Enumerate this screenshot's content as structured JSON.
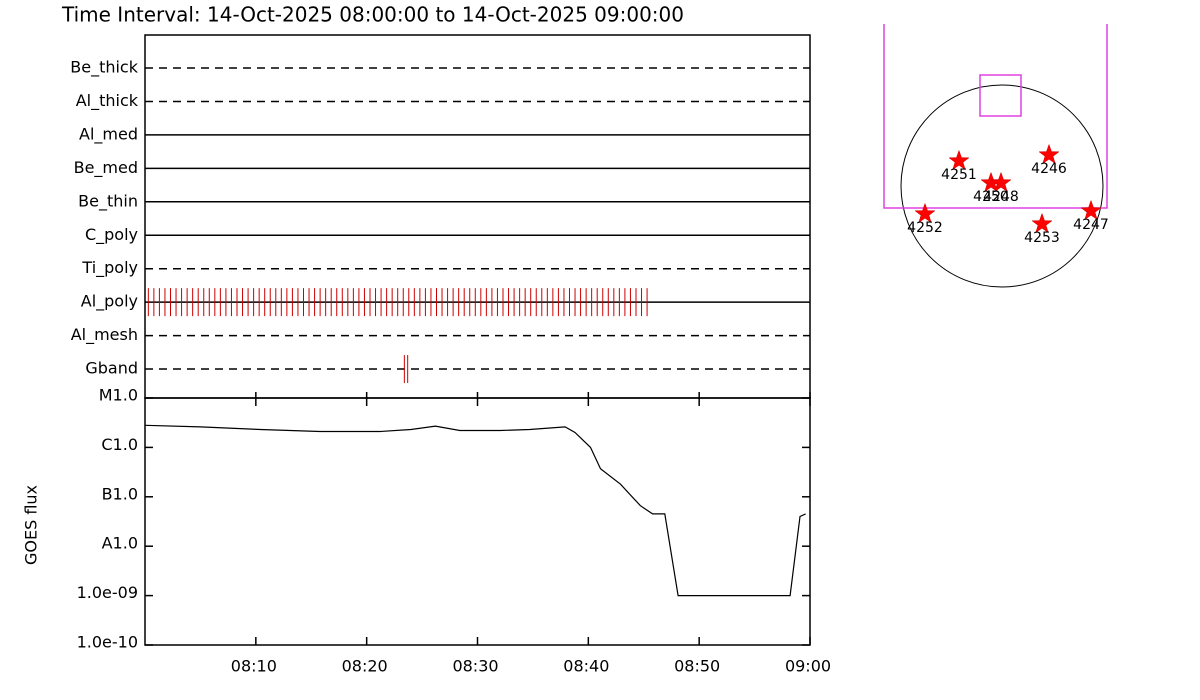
{
  "title": "Time Interval: 14-Oct-2025 08:00:00 to 14-Oct-2025 09:00:00",
  "chart_data": [
    {
      "type": "timeline",
      "xlim": [
        0,
        60
      ],
      "color": "#cc0000",
      "filters": [
        {
          "name": "Be_thick",
          "style": "dashed"
        },
        {
          "name": "Al_thick",
          "style": "dashed"
        },
        {
          "name": "Al_med",
          "style": "solid"
        },
        {
          "name": "Be_med",
          "style": "solid"
        },
        {
          "name": "Be_thin",
          "style": "solid"
        },
        {
          "name": "C_poly",
          "style": "solid"
        },
        {
          "name": "Ti_poly",
          "style": "dashed"
        },
        {
          "name": "Al_poly",
          "style": "solid",
          "observations": [
            0.3,
            0.8,
            1.3,
            1.8,
            2.3,
            2.8,
            3.3,
            3.8,
            4.3,
            4.8,
            5.3,
            5.8,
            6.3,
            6.8,
            7.3,
            7.8,
            8.3,
            8.8,
            9.3,
            9.8,
            10.3,
            10.8,
            11.3,
            11.8,
            12.3,
            12.8,
            13.3,
            13.8,
            14.3,
            14.8,
            15.3,
            15.8,
            16.3,
            16.8,
            17.3,
            17.8,
            18.3,
            18.8,
            19.3,
            19.8,
            20.3,
            20.8,
            21.3,
            21.8,
            22.3,
            22.8,
            23.3,
            23.8,
            24.3,
            24.8,
            25.3,
            25.8,
            26.3,
            26.8,
            27.3,
            27.8,
            28.3,
            28.8,
            29.3,
            29.8,
            30.3,
            30.8,
            31.3,
            31.8,
            32.3,
            32.8,
            33.3,
            33.8,
            34.3,
            34.8,
            35.3,
            35.8,
            36.3,
            36.8,
            37.3,
            37.8,
            38.3,
            38.8,
            39.3,
            39.8,
            40.3,
            40.8,
            41.3,
            41.8,
            42.3,
            42.8,
            43.3,
            43.8,
            44.3,
            44.8,
            45.3
          ]
        },
        {
          "name": "Al_mesh",
          "style": "dashed"
        },
        {
          "name": "Gband",
          "style": "dashed",
          "observations": [
            23.4,
            23.7
          ]
        }
      ]
    },
    {
      "type": "line",
      "ylabel": "GOES flux",
      "log": true,
      "color": "#000000",
      "xlim": [
        0,
        60
      ],
      "xticks": [
        {
          "value": 10,
          "label": "08:10"
        },
        {
          "value": 20,
          "label": "08:20"
        },
        {
          "value": 30,
          "label": "08:30"
        },
        {
          "value": 40,
          "label": "08:40"
        },
        {
          "value": 50,
          "label": "08:50"
        },
        {
          "value": 60,
          "label": "09:00"
        }
      ],
      "ylim": [
        1e-10,
        1e-05
      ],
      "yticks": [
        {
          "value": 1e-05,
          "label": "M1.0"
        },
        {
          "value": 1e-06,
          "label": "C1.0"
        },
        {
          "value": 1e-07,
          "label": "B1.0"
        },
        {
          "value": 1e-08,
          "label": "A1.0"
        },
        {
          "value": 1e-09,
          "label": "1.0e-09"
        },
        {
          "value": 1e-10,
          "label": "1.0e-10"
        }
      ],
      "x": [
        0,
        5,
        10.4,
        15.8,
        21.2,
        24,
        26.2,
        28.4,
        32,
        34.7,
        37.9,
        38.8,
        40.2,
        41.1,
        42.9,
        44.7,
        45.8,
        46.9,
        48.1,
        58.2,
        59.1,
        59.6
      ],
      "values": [
        2.8e-06,
        2.6e-06,
        2.3e-06,
        2.1e-06,
        2.1e-06,
        2.3e-06,
        2.7e-06,
        2.2e-06,
        2.2e-06,
        2.3e-06,
        2.6e-06,
        2e-06,
        1e-06,
        3.7e-07,
        1.8e-07,
        6.6e-08,
        4.5e-08,
        4.5e-08,
        1e-09,
        1e-09,
        4e-08,
        4.5e-08
      ]
    }
  ],
  "sun_map": {
    "regions": [
      {
        "label": "4251"
      },
      {
        "label": "4250"
      },
      {
        "label": "4248"
      },
      {
        "label": "4246"
      },
      {
        "label": "4252"
      },
      {
        "label": "4253"
      },
      {
        "label": "4247"
      }
    ]
  }
}
